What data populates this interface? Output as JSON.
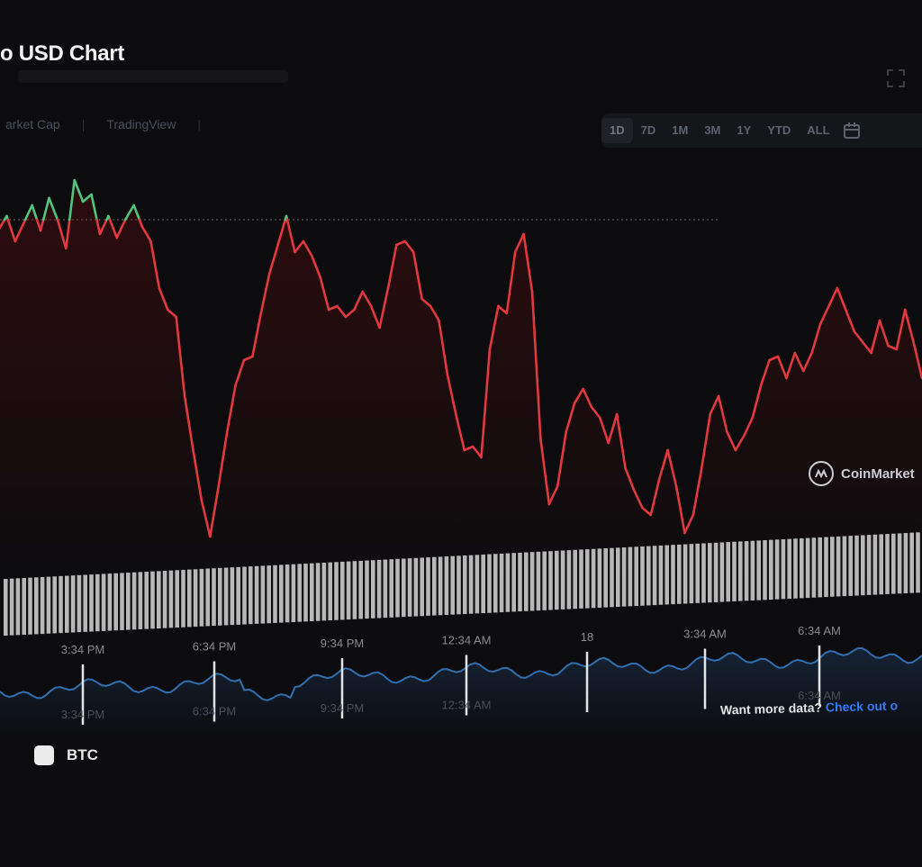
{
  "page": {
    "title": "o USD Chart"
  },
  "tabs": [
    {
      "label": "arket Cap"
    },
    {
      "label": "TradingView"
    },
    {
      "label": ""
    }
  ],
  "range_buttons": [
    "1D",
    "7D",
    "1M",
    "3M",
    "1Y",
    "YTD",
    "ALL"
  ],
  "active_range": "1D",
  "watermark": "CoinMarket",
  "footer": {
    "prompt": "Want more data?",
    "link": "Check out o"
  },
  "legend": [
    {
      "label": "BTC",
      "color": "#ececec"
    }
  ],
  "colors": {
    "up": "#4fc47a",
    "down": "#e0383d",
    "brush_line": "#2f6fb0",
    "volume": "#cfcfcf",
    "background": "#0c0c0e"
  },
  "chart_data": {
    "type": "line",
    "baseline": 0.78,
    "xlabels": [
      "3:34 PM",
      "6:34 PM",
      "9:34 PM",
      "12:34 AM",
      "18",
      "3:34 AM",
      "6:34 AM"
    ],
    "brush_labels": [
      "3:34 PM",
      "6:34 PM",
      "9:34 PM",
      "12:34 AM",
      "",
      "",
      "6:34 AM"
    ],
    "values": [
      0.72,
      0.8,
      0.66,
      0.76,
      0.86,
      0.72,
      0.9,
      0.78,
      0.62,
      1.0,
      0.88,
      0.92,
      0.7,
      0.8,
      0.68,
      0.78,
      0.86,
      0.74,
      0.66,
      0.4,
      0.28,
      0.24,
      -0.2,
      -0.5,
      -0.78,
      -0.98,
      -0.7,
      -0.4,
      -0.14,
      0.0,
      0.02,
      0.26,
      0.48,
      0.64,
      0.8,
      0.6,
      0.66,
      0.58,
      0.46,
      0.28,
      0.3,
      0.24,
      0.28,
      0.38,
      0.3,
      0.18,
      0.4,
      0.64,
      0.66,
      0.6,
      0.34,
      0.3,
      0.22,
      -0.08,
      -0.3,
      -0.5,
      -0.48,
      -0.54,
      0.06,
      0.3,
      0.26,
      0.6,
      0.7,
      0.38,
      -0.44,
      -0.8,
      -0.7,
      -0.4,
      -0.24,
      -0.16,
      -0.26,
      -0.32,
      -0.46,
      -0.3,
      -0.6,
      -0.72,
      -0.82,
      -0.86,
      -0.66,
      -0.5,
      -0.7,
      -0.96,
      -0.86,
      -0.6,
      -0.3,
      -0.2,
      -0.4,
      -0.5,
      -0.42,
      -0.32,
      -0.14,
      0.0,
      0.02,
      -0.1,
      0.04,
      -0.06,
      0.04,
      0.2,
      0.3,
      0.4,
      0.28,
      0.16,
      0.1,
      0.04,
      0.22,
      0.08,
      0.06,
      0.28,
      0.1,
      -0.1
    ]
  }
}
